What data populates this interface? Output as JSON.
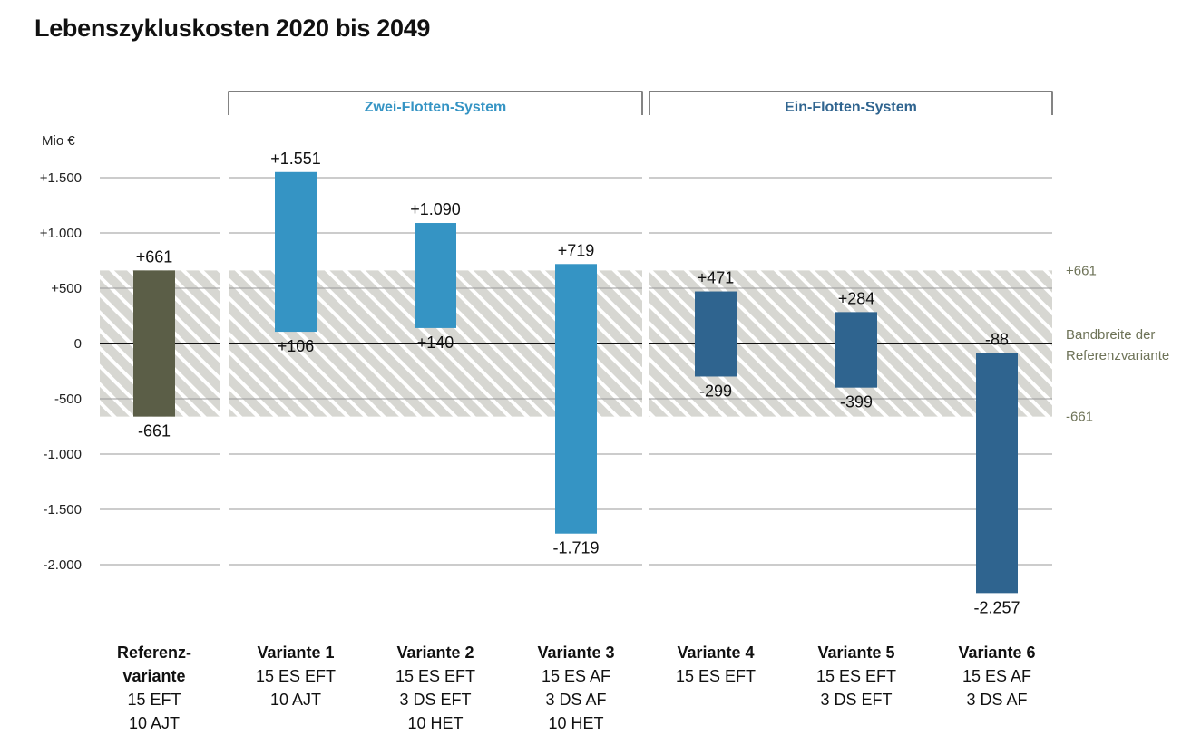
{
  "title": "Lebenszykluskosten 2020 bis 2049",
  "colors": {
    "reference": "#5b5e47",
    "two_fleet": "#3594c4",
    "one_fleet": "#2f648f",
    "group_two_label": "#3594c4",
    "group_one_label": "#2f648f",
    "band_label": "#6e7358",
    "grid": "#9a9a9a",
    "hatch_bg": "#d7d7d2",
    "hatch_stripe": "#ffffff"
  },
  "groups": [
    {
      "label": "Zwei-Flotten-System",
      "from": 1,
      "to": 3
    },
    {
      "label": "Ein-Flotten-System",
      "from": 4,
      "to": 6
    }
  ],
  "band": {
    "upper_label": "+661",
    "lower_label": "-661",
    "caption_lines": [
      "Bandbreite der",
      "Referenzvariante"
    ]
  },
  "chart_data": {
    "type": "bar",
    "subtype": "floating-range",
    "ylabel": "Mio €",
    "ylim": [
      -2300,
      1750
    ],
    "yticks": [
      1500,
      1000,
      500,
      0,
      -500,
      -1000,
      -1500,
      -2000
    ],
    "ytick_labels": [
      "+1.500",
      "+1.000",
      "+500",
      "0",
      "-500",
      "-1.000",
      "-1.500",
      "-2.000"
    ],
    "reference_band": [
      -661,
      661
    ],
    "grid": true,
    "categories": [
      {
        "lines": [
          "Referenz-",
          "variante",
          "15 EFT",
          "10 AJT"
        ],
        "bold_lines": 2,
        "group": "reference",
        "low": -661,
        "high": 661,
        "low_label": "-661",
        "high_label": "+661"
      },
      {
        "lines": [
          "Variante 1",
          "15 ES EFT",
          "10 AJT"
        ],
        "bold_lines": 1,
        "group": "two_fleet",
        "low": 106,
        "high": 1551,
        "low_label": "+106",
        "high_label": "+1.551"
      },
      {
        "lines": [
          "Variante 2",
          "15 ES EFT",
          "3 DS EFT",
          "10 HET"
        ],
        "bold_lines": 1,
        "group": "two_fleet",
        "low": 140,
        "high": 1090,
        "low_label": "+140",
        "high_label": "+1.090"
      },
      {
        "lines": [
          "Variante 3",
          "15 ES AF",
          "3 DS AF",
          "10 HET"
        ],
        "bold_lines": 1,
        "group": "two_fleet",
        "low": -1719,
        "high": 719,
        "low_label": "-1.719",
        "high_label": "+719"
      },
      {
        "lines": [
          "Variante 4",
          "15 ES EFT"
        ],
        "bold_lines": 1,
        "group": "one_fleet",
        "low": -299,
        "high": 471,
        "low_label": "-299",
        "high_label": "+471"
      },
      {
        "lines": [
          "Variante 5",
          "15 ES EFT",
          "3 DS EFT"
        ],
        "bold_lines": 1,
        "group": "one_fleet",
        "low": -399,
        "high": 284,
        "low_label": "-399",
        "high_label": "+284"
      },
      {
        "lines": [
          "Variante 6",
          "15 ES AF",
          "3 DS AF"
        ],
        "bold_lines": 1,
        "group": "one_fleet",
        "low": -2257,
        "high": -88,
        "low_label": "-2.257",
        "high_label": "-88"
      }
    ]
  }
}
